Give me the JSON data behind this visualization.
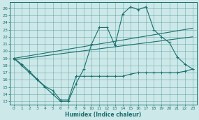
{
  "xlabel": "Humidex (Indice chaleur)",
  "bg_color": "#cce8e8",
  "line_color": "#1a7070",
  "xlim": [
    -0.5,
    23.5
  ],
  "ylim": [
    12.5,
    26.8
  ],
  "yticks": [
    13,
    14,
    15,
    16,
    17,
    18,
    19,
    20,
    21,
    22,
    23,
    24,
    25,
    26
  ],
  "xticks": [
    0,
    1,
    2,
    3,
    4,
    5,
    6,
    7,
    8,
    9,
    10,
    11,
    12,
    13,
    14,
    15,
    16,
    17,
    18,
    19,
    20,
    21,
    22,
    23
  ],
  "line1_x": [
    0,
    1,
    2,
    3,
    4,
    5,
    6,
    7,
    8,
    9,
    10,
    11,
    12,
    13,
    14,
    15,
    16,
    17,
    18,
    19,
    20,
    21,
    22,
    23
  ],
  "line1_y": [
    19,
    18,
    17,
    16,
    15,
    14,
    13,
    13,
    15.5,
    17.5,
    21,
    23.3,
    23.3,
    20.8,
    25.2,
    26.2,
    25.8,
    26.2,
    23,
    22,
    21.2,
    19.2,
    18.2,
    17.5
  ],
  "line2_x": [
    0,
    1,
    2,
    3,
    4,
    5,
    6,
    7,
    8,
    9,
    10,
    11,
    12,
    13,
    14,
    15,
    16,
    17,
    18,
    19,
    20,
    21,
    22,
    23
  ],
  "line2_y": [
    19,
    18.2,
    17.2,
    16.1,
    15.1,
    14.5,
    13.2,
    13.2,
    16.5,
    16.5,
    16.5,
    16.5,
    16.5,
    16.5,
    16.5,
    16.8,
    17.0,
    17.0,
    17.0,
    17.0,
    17.0,
    17.0,
    17.2,
    17.5
  ],
  "line3_x": [
    0,
    23
  ],
  "line3_y": [
    19.0,
    23.2
  ],
  "line4_x": [
    0,
    23
  ],
  "line4_y": [
    18.8,
    22.0
  ]
}
